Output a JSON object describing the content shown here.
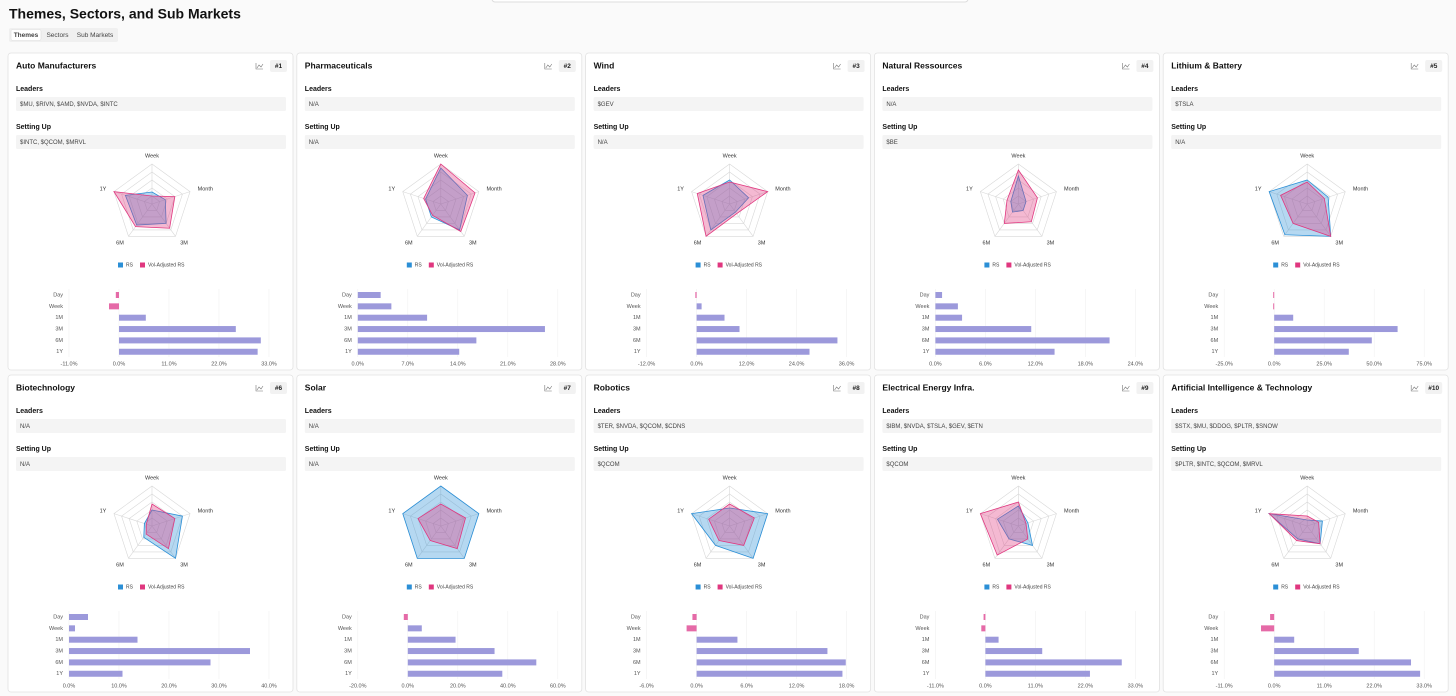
{
  "header": {
    "title": "Themes, Sectors, and Sub Markets",
    "tabs": [
      "Themes",
      "Sectors",
      "Sub Markets"
    ]
  },
  "cards": [
    {
      "title": "Auto Manufacturers",
      "rank": "#1",
      "sections": [
        {
          "label": "Leaders",
          "value": "$MU, $RIVN, $AMD, $NVDA, $INTC"
        },
        {
          "label": "Setting Up",
          "value": "$INTC, $QCOM, $MRVL"
        }
      ]
    },
    {
      "title": "Pharmaceuticals",
      "rank": "#2",
      "sections": [
        {
          "label": "Leaders",
          "value": "N/A"
        },
        {
          "label": "Setting Up",
          "value": "N/A"
        }
      ]
    },
    {
      "title": "Wind",
      "rank": "#3",
      "sections": [
        {
          "label": "Leaders",
          "value": "$GEV"
        },
        {
          "label": "Setting Up",
          "value": "N/A"
        }
      ]
    },
    {
      "title": "Natural Ressources",
      "rank": "#4",
      "sections": [
        {
          "label": "Leaders",
          "value": "N/A"
        },
        {
          "label": "Setting Up",
          "value": "$BE"
        }
      ]
    },
    {
      "title": "Lithium & Battery",
      "rank": "#5",
      "sections": [
        {
          "label": "Leaders",
          "value": "$TSLA"
        },
        {
          "label": "Setting Up",
          "value": "N/A"
        }
      ]
    },
    {
      "title": "Biotechnology",
      "rank": "#6",
      "sections": [
        {
          "label": "Leaders",
          "value": "N/A"
        },
        {
          "label": "Setting Up",
          "value": "N/A"
        }
      ]
    },
    {
      "title": "Solar",
      "rank": "#7",
      "sections": [
        {
          "label": "Leaders",
          "value": "N/A"
        },
        {
          "label": "Setting Up",
          "value": "N/A"
        }
      ]
    },
    {
      "title": "Robotics",
      "rank": "#8",
      "sections": [
        {
          "label": "Leaders",
          "value": "$TER, $NVDA, $QCOM, $CDNS"
        },
        {
          "label": "Setting Up",
          "value": "$QCOM"
        }
      ]
    },
    {
      "title": "Electrical Energy Infra.",
      "rank": "#9",
      "sections": [
        {
          "label": "Leaders",
          "value": "$IBM, $NVDA, $TSLA, $GEV, $ETN"
        },
        {
          "label": "Setting Up",
          "value": "$QCOM"
        }
      ]
    },
    {
      "title": "Artificial Intelligence & Technology",
      "rank": "#10",
      "sections": [
        {
          "label": "Leaders",
          "value": "$STX, $MU, $DDOG, $PLTR, $SNOW"
        },
        {
          "label": "Setting Up",
          "value": "$PLTR, $INTC, $QCOM, $MRVL"
        }
      ]
    }
  ],
  "chart_data": [
    {
      "type": "radar",
      "categories": [
        "Week",
        "Month",
        "3M",
        "6M",
        "1Y"
      ],
      "rlim": [
        0,
        100
      ],
      "series": [
        {
          "name": "RS",
          "color": "#2b8fd6",
          "values": [
            30,
            35,
            60,
            65,
            70
          ]
        },
        {
          "name": "Vol-Adjusted RS",
          "color": "#e0377f",
          "values": [
            20,
            60,
            75,
            70,
            100
          ]
        }
      ]
    },
    {
      "type": "hbar",
      "categories": [
        "Day",
        "Week",
        "1M",
        "3M",
        "6M",
        "1Y"
      ],
      "values": [
        -0.7,
        -2.2,
        5.9,
        25.7,
        31.2,
        30.5
      ],
      "color": "#9c99db",
      "negative_color": "#e56aa7",
      "xlim": [
        -11,
        33
      ],
      "xticks": [
        {
          "value": -11,
          "label": "-11.0%"
        },
        {
          "value": 0,
          "label": "0.0%"
        },
        {
          "value": 11,
          "label": "11.0%"
        },
        {
          "value": 22,
          "label": "22.0%"
        },
        {
          "value": 33,
          "label": "33.0%"
        }
      ]
    },
    {
      "type": "radar",
      "categories": [
        "Week",
        "Month",
        "3M",
        "6M",
        "1Y"
      ],
      "rlim": [
        0,
        100
      ],
      "series": [
        {
          "name": "RS",
          "color": "#2b8fd6",
          "values": [
            90,
            70,
            80,
            40,
            40
          ]
        },
        {
          "name": "Vol-Adjusted RS",
          "color": "#e0377f",
          "values": [
            100,
            90,
            85,
            35,
            45
          ]
        }
      ]
    },
    {
      "type": "hbar",
      "categories": [
        "Day",
        "Week",
        "1M",
        "3M",
        "6M",
        "1Y"
      ],
      "values": [
        3.2,
        4.7,
        9.7,
        26.2,
        16.6,
        14.2
      ],
      "color": "#9c99db",
      "negative_color": "#e56aa7",
      "xlim": [
        0,
        28
      ],
      "xticks": [
        {
          "value": 0,
          "label": "0.0%"
        },
        {
          "value": 7,
          "label": "7.0%"
        },
        {
          "value": 14,
          "label": "14.0%"
        },
        {
          "value": 21,
          "label": "21.0%"
        },
        {
          "value": 28,
          "label": "28.0%"
        }
      ]
    },
    {
      "type": "radar",
      "categories": [
        "Week",
        "Month",
        "3M",
        "6M",
        "1Y"
      ],
      "rlim": [
        0,
        100
      ],
      "series": [
        {
          "name": "RS",
          "color": "#2b8fd6",
          "values": [
            60,
            50,
            25,
            80,
            70
          ]
        },
        {
          "name": "Vol-Adjusted RS",
          "color": "#e0377f",
          "values": [
            55,
            100,
            30,
            100,
            85
          ]
        }
      ]
    },
    {
      "type": "hbar",
      "categories": [
        "Day",
        "Week",
        "1M",
        "3M",
        "6M",
        "1Y"
      ],
      "values": [
        -0.3,
        1.2,
        6.7,
        10.3,
        33.8,
        27.1
      ],
      "color": "#9c99db",
      "negative_color": "#e56aa7",
      "xlim": [
        -12,
        36
      ],
      "xticks": [
        {
          "value": -12,
          "label": "-12.0%"
        },
        {
          "value": 0,
          "label": "0.0%"
        },
        {
          "value": 12,
          "label": "12.0%"
        },
        {
          "value": 24,
          "label": "24.0%"
        },
        {
          "value": 36,
          "label": "36.0%"
        }
      ]
    },
    {
      "type": "radar",
      "categories": [
        "Week",
        "Month",
        "3M",
        "6M",
        "1Y"
      ],
      "rlim": [
        0,
        100
      ],
      "series": [
        {
          "name": "RS",
          "color": "#2b8fd6",
          "values": [
            70,
            20,
            20,
            25,
            20
          ]
        },
        {
          "name": "Vol-Adjusted RS",
          "color": "#e0377f",
          "values": [
            85,
            50,
            55,
            60,
            30
          ]
        }
      ]
    },
    {
      "type": "hbar",
      "categories": [
        "Day",
        "Week",
        "1M",
        "3M",
        "6M",
        "1Y"
      ],
      "values": [
        0.8,
        2.7,
        3.2,
        11.5,
        20.9,
        14.3
      ],
      "color": "#9c99db",
      "negative_color": "#e56aa7",
      "xlim": [
        0,
        24
      ],
      "xticks": [
        {
          "value": 0,
          "label": "0.0%"
        },
        {
          "value": 6,
          "label": "6.0%"
        },
        {
          "value": 12,
          "label": "12.0%"
        },
        {
          "value": 18,
          "label": "18.0%"
        },
        {
          "value": 24,
          "label": "24.0%"
        }
      ]
    },
    {
      "type": "radar",
      "categories": [
        "Week",
        "Month",
        "3M",
        "6M",
        "1Y"
      ],
      "rlim": [
        0,
        100
      ],
      "series": [
        {
          "name": "RS",
          "color": "#2b8fd6",
          "values": [
            60,
            55,
            100,
            95,
            100
          ]
        },
        {
          "name": "Vol-Adjusted RS",
          "color": "#e0377f",
          "values": [
            55,
            45,
            100,
            60,
            70
          ]
        }
      ]
    },
    {
      "type": "hbar",
      "categories": [
        "Day",
        "Week",
        "1M",
        "3M",
        "6M",
        "1Y"
      ],
      "values": [
        -0.5,
        -0.5,
        9.5,
        61.7,
        48.8,
        37.3
      ],
      "color": "#9c99db",
      "negative_color": "#e56aa7",
      "xlim": [
        -25,
        75
      ],
      "xticks": [
        {
          "value": -25,
          "label": "-25.0%"
        },
        {
          "value": 0,
          "label": "0.0%"
        },
        {
          "value": 25,
          "label": "25.0%"
        },
        {
          "value": 50,
          "label": "50.0%"
        },
        {
          "value": 75,
          "label": "75.0%"
        }
      ]
    },
    {
      "type": "radar",
      "categories": [
        "Week",
        "Month",
        "3M",
        "6M",
        "1Y"
      ],
      "rlim": [
        0,
        100
      ],
      "series": [
        {
          "name": "RS",
          "color": "#2b8fd6",
          "values": [
            40,
            80,
            100,
            35,
            20
          ]
        },
        {
          "name": "Vol-Adjusted RS",
          "color": "#e0377f",
          "values": [
            55,
            60,
            70,
            25,
            15
          ]
        }
      ]
    },
    {
      "type": "hbar",
      "categories": [
        "Day",
        "Week",
        "1M",
        "3M",
        "6M",
        "1Y"
      ],
      "values": [
        3.8,
        1.2,
        13.7,
        36.2,
        28.3,
        10.7
      ],
      "color": "#9c99db",
      "negative_color": "#e56aa7",
      "xlim": [
        0,
        40
      ],
      "xticks": [
        {
          "value": 0,
          "label": "0.0%"
        },
        {
          "value": 10,
          "label": "10.0%"
        },
        {
          "value": 20,
          "label": "20.0%"
        },
        {
          "value": 30,
          "label": "30.0%"
        },
        {
          "value": 40,
          "label": "40.0%"
        }
      ]
    },
    {
      "type": "radar",
      "categories": [
        "Week",
        "Month",
        "3M",
        "6M",
        "1Y"
      ],
      "rlim": [
        0,
        100
      ],
      "series": [
        {
          "name": "RS",
          "color": "#2b8fd6",
          "values": [
            100,
            100,
            100,
            100,
            100
          ]
        },
        {
          "name": "Vol-Adjusted RS",
          "color": "#e0377f",
          "values": [
            55,
            65,
            70,
            45,
            60
          ]
        }
      ]
    },
    {
      "type": "hbar",
      "categories": [
        "Day",
        "Week",
        "1M",
        "3M",
        "6M",
        "1Y"
      ],
      "values": [
        -1.6,
        5.6,
        19.1,
        34.7,
        51.4,
        37.8
      ],
      "color": "#9c99db",
      "negative_color": "#e56aa7",
      "xlim": [
        -20,
        60
      ],
      "xticks": [
        {
          "value": -20,
          "label": "-20.0%"
        },
        {
          "value": 0,
          "label": "0.0%"
        },
        {
          "value": 20,
          "label": "20.0%"
        },
        {
          "value": 40,
          "label": "40.0%"
        },
        {
          "value": 60,
          "label": "60.0%"
        }
      ]
    },
    {
      "type": "radar",
      "categories": [
        "Week",
        "Month",
        "3M",
        "6M",
        "1Y"
      ],
      "rlim": [
        0,
        100
      ],
      "series": [
        {
          "name": "RS",
          "color": "#2b8fd6",
          "values": [
            45,
            100,
            100,
            60,
            100
          ]
        },
        {
          "name": "Vol-Adjusted RS",
          "color": "#e0377f",
          "values": [
            55,
            65,
            60,
            45,
            55
          ]
        }
      ]
    },
    {
      "type": "hbar",
      "categories": [
        "Day",
        "Week",
        "1M",
        "3M",
        "6M",
        "1Y"
      ],
      "values": [
        -0.5,
        -1.2,
        4.9,
        15.7,
        17.9,
        17.5
      ],
      "color": "#9c99db",
      "negative_color": "#e56aa7",
      "xlim": [
        -6,
        18
      ],
      "xticks": [
        {
          "value": -6,
          "label": "-6.0%"
        },
        {
          "value": 0,
          "label": "0.0%"
        },
        {
          "value": 6,
          "label": "6.0%"
        },
        {
          "value": 12,
          "label": "12.0%"
        },
        {
          "value": 18,
          "label": "18.0%"
        }
      ]
    },
    {
      "type": "radar",
      "categories": [
        "Week",
        "Month",
        "3M",
        "6M",
        "1Y"
      ],
      "rlim": [
        0,
        100
      ],
      "series": [
        {
          "name": "RS",
          "color": "#2b8fd6",
          "values": [
            50,
            25,
            60,
            40,
            55
          ]
        },
        {
          "name": "Vol-Adjusted RS",
          "color": "#e0377f",
          "values": [
            60,
            20,
            40,
            90,
            100
          ]
        }
      ]
    },
    {
      "type": "hbar",
      "categories": [
        "Day",
        "Week",
        "1M",
        "3M",
        "6M",
        "1Y"
      ],
      "values": [
        -0.4,
        -0.9,
        2.9,
        12.5,
        30,
        23
      ],
      "color": "#9c99db",
      "negative_color": "#e56aa7",
      "xlim": [
        -11,
        33
      ],
      "xticks": [
        {
          "value": -11,
          "label": "-11.0%"
        },
        {
          "value": 0,
          "label": "0.0%"
        },
        {
          "value": 11,
          "label": "11.0%"
        },
        {
          "value": 22,
          "label": "22.0%"
        },
        {
          "value": 33,
          "label": "33.0%"
        }
      ]
    },
    {
      "type": "radar",
      "categories": [
        "Week",
        "Month",
        "3M",
        "6M",
        "1Y"
      ],
      "rlim": [
        0,
        100
      ],
      "series": [
        {
          "name": "RS",
          "color": "#2b8fd6",
          "values": [
            15,
            40,
            55,
            40,
            100
          ]
        },
        {
          "name": "Vol-Adjusted RS",
          "color": "#e0377f",
          "values": [
            25,
            30,
            55,
            45,
            100
          ]
        }
      ]
    },
    {
      "type": "hbar",
      "categories": [
        "Day",
        "Week",
        "1M",
        "3M",
        "6M",
        "1Y"
      ],
      "values": [
        -0.9,
        -2.9,
        4.4,
        18.6,
        30.1,
        32.1
      ],
      "color": "#9c99db",
      "negative_color": "#e56aa7",
      "xlim": [
        -11,
        33
      ],
      "xticks": [
        {
          "value": -11,
          "label": "-11.0%"
        },
        {
          "value": 0,
          "label": "0.0%"
        },
        {
          "value": 11,
          "label": "11.0%"
        },
        {
          "value": 22,
          "label": "22.0%"
        },
        {
          "value": 33,
          "label": "33.0%"
        }
      ]
    }
  ]
}
